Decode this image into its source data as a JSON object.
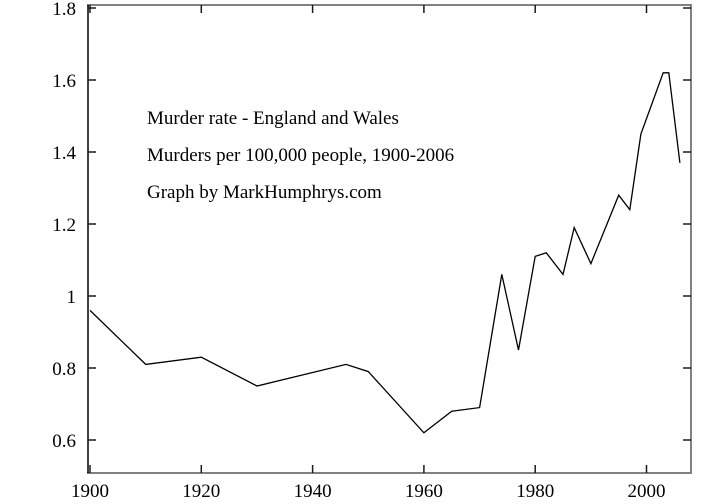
{
  "chart_data": {
    "type": "line",
    "title": "Murder rate - England and Wales",
    "subtitle": "Murders per 100,000 people, 1900-2006",
    "credit": "Graph by MarkHumphrys.com",
    "x": [
      1900,
      1910,
      1920,
      1930,
      1946,
      1950,
      1960,
      1965,
      1970,
      1974,
      1977,
      1980,
      1982,
      1985,
      1987,
      1990,
      1995,
      1997,
      1999,
      2003,
      2004,
      2006
    ],
    "values": [
      0.96,
      0.81,
      0.83,
      0.75,
      0.81,
      0.79,
      0.62,
      0.68,
      0.69,
      1.06,
      0.85,
      1.11,
      1.12,
      1.06,
      1.19,
      1.09,
      1.28,
      1.24,
      1.45,
      1.62,
      1.62,
      1.37
    ],
    "xlabel": "",
    "ylabel": "",
    "xlim": [
      1900,
      2008
    ],
    "ylim": [
      0.5,
      1.8
    ],
    "x_ticks": [
      1900,
      1920,
      1940,
      1960,
      1980,
      2000
    ],
    "x_tick_labels": [
      "1900",
      "1920",
      "1940",
      "1960",
      "1980",
      "2000"
    ],
    "y_ticks": [
      0.6,
      0.8,
      1,
      1.2,
      1.4,
      1.6,
      1.8
    ],
    "y_tick_labels": [
      "0.6",
      "0.8",
      "1",
      "1.2",
      "1.4",
      "1.6",
      "1.8"
    ],
    "grid": false,
    "legend": false,
    "line_color": "#000000",
    "tick_color": "#1a1a1a",
    "border_color": "#808080",
    "left_axis_color": "#000000",
    "background_color": "#ffffff"
  }
}
